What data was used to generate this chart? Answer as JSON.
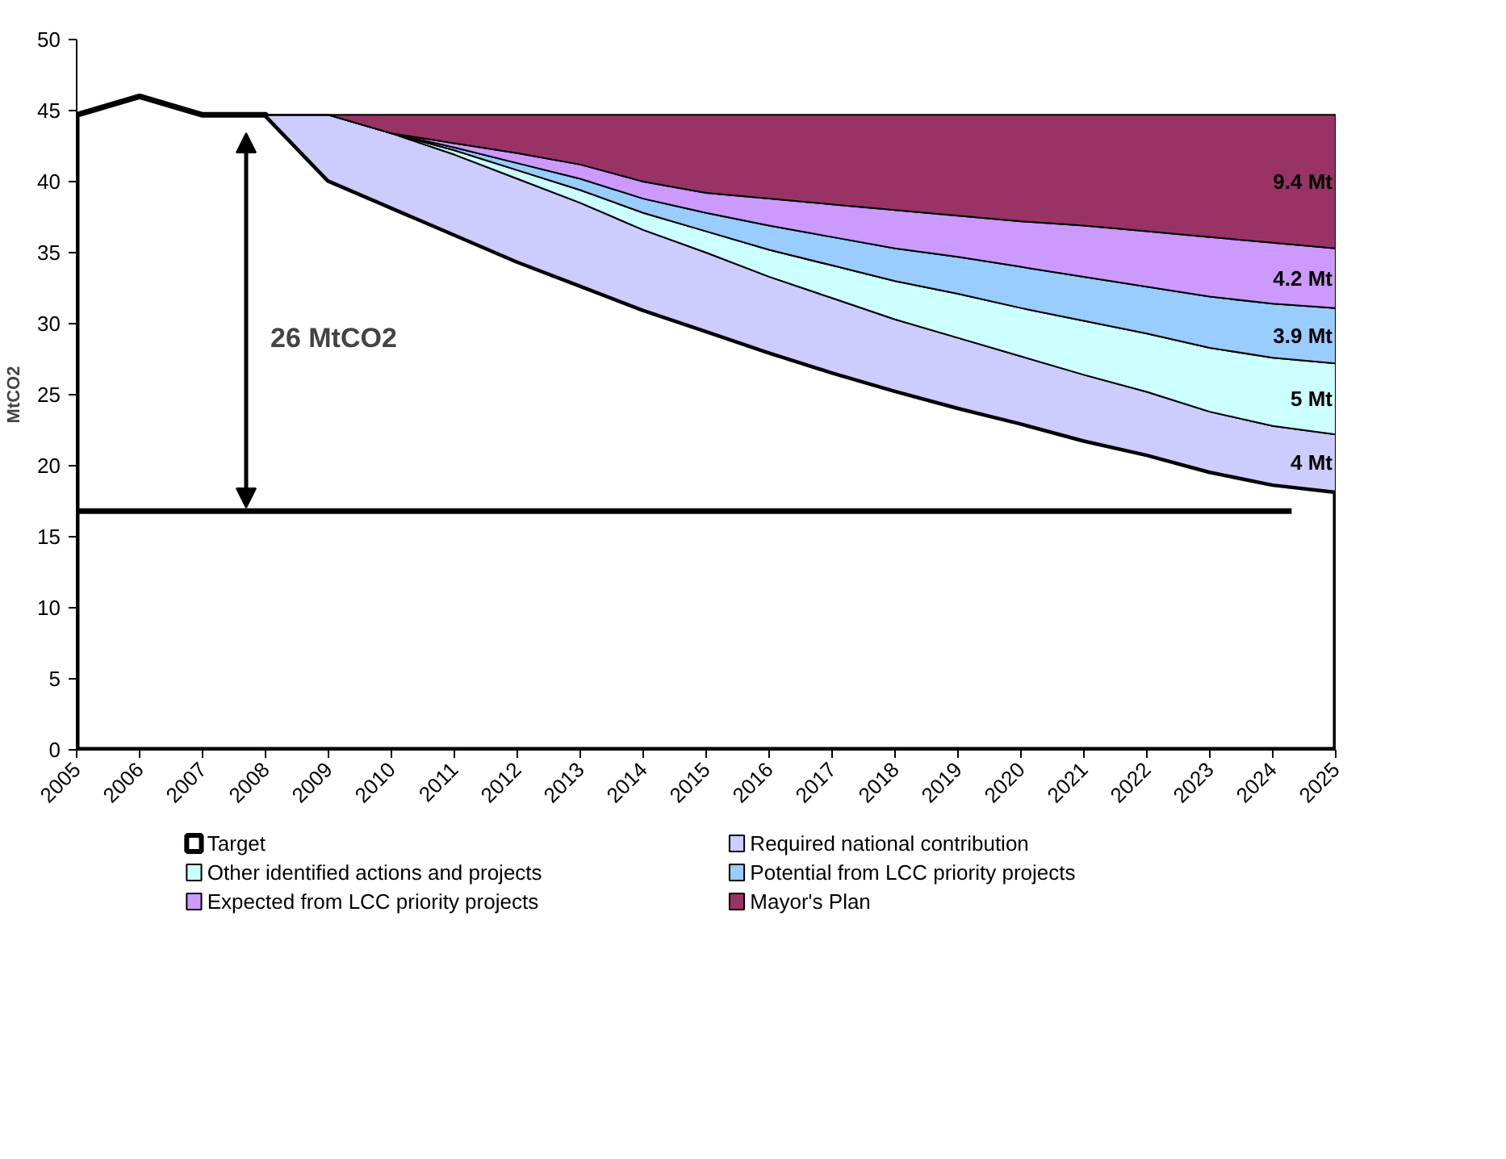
{
  "chart_data": {
    "type": "area",
    "stacked": true,
    "ylabel": "MtCO2",
    "x": [
      2005,
      2006,
      2007,
      2008,
      2009,
      2010,
      2011,
      2012,
      2013,
      2014,
      2015,
      2016,
      2017,
      2018,
      2019,
      2020,
      2021,
      2022,
      2023,
      2024,
      2025
    ],
    "xlim": [
      2005,
      2025
    ],
    "xticks": [
      2005,
      2006,
      2007,
      2008,
      2009,
      2010,
      2011,
      2012,
      2013,
      2014,
      2015,
      2016,
      2017,
      2018,
      2019,
      2020,
      2021,
      2022,
      2023,
      2024,
      2025
    ],
    "ylim": [
      0,
      50
    ],
    "yticks": [
      0,
      5,
      10,
      15,
      20,
      25,
      30,
      35,
      40,
      45,
      50
    ],
    "grid": false,
    "legend": "bottom",
    "annotations": [
      "26 MtCO2"
    ],
    "series": [
      {
        "name": "Target",
        "color": "#ffffff",
        "values": [
          44.7,
          46.0,
          44.7,
          44.7,
          40.1,
          38.2,
          36.3,
          34.4,
          32.7,
          31.0,
          29.5,
          28.0,
          26.6,
          25.3,
          24.1,
          23.0,
          21.8,
          20.8,
          19.6,
          18.7,
          18.2
        ]
      },
      {
        "name": "Required national contribution",
        "color": "#ccccff",
        "values": [
          null,
          null,
          null,
          0,
          4.6,
          5.2,
          5.6,
          5.8,
          5.8,
          5.6,
          5.5,
          5.3,
          5.2,
          5.0,
          4.9,
          4.7,
          4.6,
          4.4,
          4.2,
          4.1,
          4.0
        ],
        "value_labels": [
          null,
          null,
          null,
          null,
          null,
          null,
          null,
          null,
          null,
          null,
          null,
          null,
          null,
          null,
          null,
          null,
          null,
          null,
          null,
          null,
          "4 Mt"
        ]
      },
      {
        "name": "Other identified actions and projects",
        "color": "#ccffff",
        "values": [
          null,
          null,
          null,
          0,
          0,
          0,
          0.3,
          0.6,
          0.9,
          1.2,
          1.5,
          1.9,
          2.3,
          2.7,
          3.1,
          3.4,
          3.8,
          4.1,
          4.5,
          4.8,
          5.0
        ],
        "value_labels": [
          null,
          null,
          null,
          null,
          null,
          null,
          null,
          null,
          null,
          null,
          null,
          null,
          null,
          null,
          null,
          null,
          null,
          null,
          null,
          null,
          "5 Mt"
        ]
      },
      {
        "name": "Potential from LCC priority projects",
        "color": "#99ccff",
        "values": [
          null,
          null,
          null,
          0,
          0,
          0,
          0.2,
          0.5,
          0.8,
          1.0,
          1.3,
          1.7,
          2.0,
          2.3,
          2.6,
          2.9,
          3.1,
          3.3,
          3.6,
          3.8,
          3.9
        ],
        "value_labels": [
          null,
          null,
          null,
          null,
          null,
          null,
          null,
          null,
          null,
          null,
          null,
          null,
          null,
          null,
          null,
          null,
          null,
          null,
          null,
          null,
          "3.9 Mt"
        ]
      },
      {
        "name": "Expected from LCC priority projects",
        "color": "#cc99ff",
        "values": [
          null,
          null,
          null,
          0,
          0,
          0,
          0.3,
          0.7,
          1.0,
          1.2,
          1.4,
          1.9,
          2.3,
          2.7,
          2.9,
          3.2,
          3.6,
          3.9,
          4.2,
          4.3,
          4.2
        ],
        "value_labels": [
          null,
          null,
          null,
          null,
          null,
          null,
          null,
          null,
          null,
          null,
          null,
          null,
          null,
          null,
          null,
          null,
          null,
          null,
          null,
          null,
          "4.2 Mt"
        ]
      },
      {
        "name": "Mayor's Plan",
        "color": "#993366",
        "values": [
          null,
          null,
          null,
          0,
          0,
          1.3,
          2.0,
          2.7,
          3.5,
          4.7,
          5.5,
          5.9,
          6.3,
          6.7,
          7.1,
          7.5,
          7.8,
          8.2,
          8.6,
          9.0,
          9.4
        ],
        "value_labels": [
          null,
          null,
          null,
          null,
          null,
          null,
          null,
          null,
          null,
          null,
          null,
          null,
          null,
          null,
          null,
          null,
          null,
          null,
          null,
          null,
          "9.4 Mt"
        ]
      },
      {
        "type": "line",
        "color": "#000000",
        "x": [
          2005,
          2024.3
        ],
        "values": [
          16.8,
          16.8
        ]
      }
    ]
  }
}
